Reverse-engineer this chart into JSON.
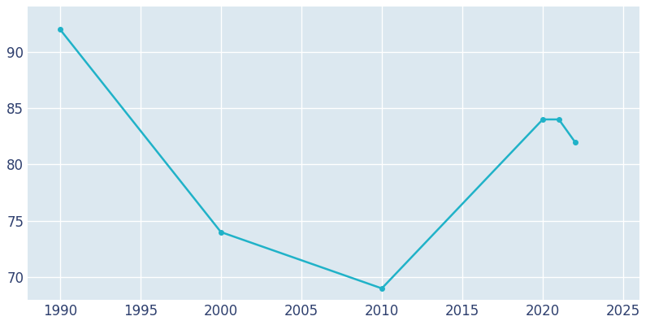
{
  "years": [
    1990,
    2000,
    2010,
    2020,
    2021,
    2022
  ],
  "population": [
    92,
    74,
    69,
    84,
    84,
    82
  ],
  "line_color": "#20B2C8",
  "fig_bg_color": "#ffffff",
  "axes_bg_color": "#dce8f0",
  "grid_color": "#ffffff",
  "tick_color": "#2e3f6e",
  "xlim": [
    1988,
    2026
  ],
  "ylim": [
    68,
    94
  ],
  "xticks": [
    1990,
    1995,
    2000,
    2005,
    2010,
    2015,
    2020,
    2025
  ],
  "yticks": [
    70,
    75,
    80,
    85,
    90
  ],
  "linewidth": 1.8,
  "marker": "o",
  "markersize": 4,
  "tick_fontsize": 12
}
